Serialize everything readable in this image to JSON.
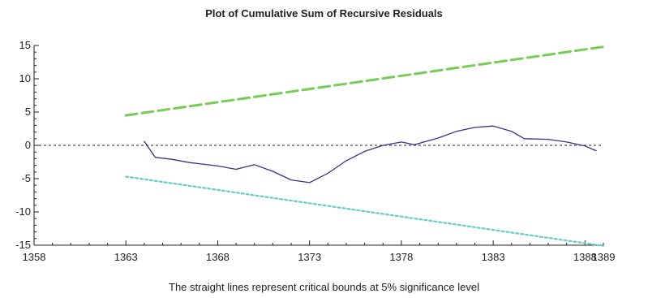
{
  "chart_data": {
    "type": "line",
    "title": "Plot of Cumulative Sum of Recursive Residuals",
    "caption": "The straight lines represent critical bounds at 5% significance level",
    "xlim": [
      1358,
      1389
    ],
    "ylim": [
      -15,
      15
    ],
    "x_ticks": [
      1358,
      1363,
      1368,
      1373,
      1378,
      1383,
      1388,
      1389
    ],
    "y_ticks": [
      15,
      10,
      5,
      0,
      -5,
      -10,
      -15
    ],
    "grid": false,
    "zero_line": true,
    "series": [
      {
        "key": "cusum",
        "color": "#33338f",
        "style": "solid",
        "points": [
          [
            1364.0,
            0.6
          ],
          [
            1364.6,
            -1.8
          ],
          [
            1365.5,
            -2.1
          ],
          [
            1366.5,
            -2.6
          ],
          [
            1368.0,
            -3.1
          ],
          [
            1369.0,
            -3.6
          ],
          [
            1370.0,
            -2.9
          ],
          [
            1371.0,
            -3.9
          ],
          [
            1372.0,
            -5.2
          ],
          [
            1373.0,
            -5.6
          ],
          [
            1374.0,
            -4.2
          ],
          [
            1375.0,
            -2.3
          ],
          [
            1376.0,
            -0.9
          ],
          [
            1377.0,
            0.0
          ],
          [
            1378.0,
            0.5
          ],
          [
            1378.7,
            0.1
          ],
          [
            1380.0,
            1.1
          ],
          [
            1381.0,
            2.1
          ],
          [
            1382.0,
            2.7
          ],
          [
            1383.0,
            2.9
          ],
          [
            1384.0,
            2.1
          ],
          [
            1384.7,
            1.0
          ],
          [
            1386.0,
            0.9
          ],
          [
            1387.0,
            0.5
          ],
          [
            1388.0,
            -0.1
          ],
          [
            1388.6,
            -0.8
          ]
        ]
      },
      {
        "key": "upper_bound",
        "color": "#77cc55",
        "style": "dashed",
        "points": [
          [
            1363.0,
            4.5
          ],
          [
            1389.0,
            14.8
          ]
        ]
      },
      {
        "key": "lower_bound",
        "color": "#66cccc",
        "style": "dotted",
        "points": [
          [
            1363.0,
            -4.7
          ],
          [
            1389.0,
            -15.1
          ]
        ]
      }
    ]
  }
}
